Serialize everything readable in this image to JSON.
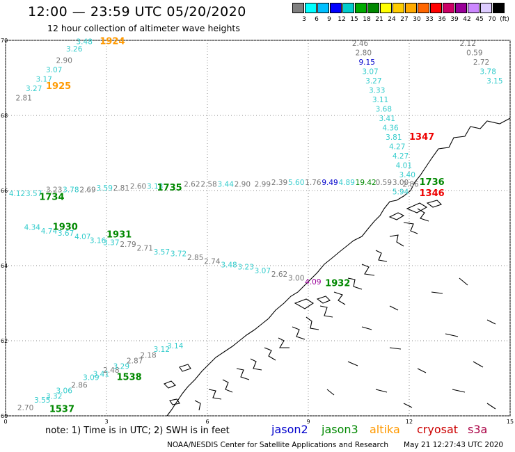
{
  "header": {
    "title": "12:00 — 23:59 UTC 05/20/2020",
    "subtitle": "12 hour collection of altimeter wave heights"
  },
  "legend": {
    "colors": [
      "#808080",
      "#00ffff",
      "#00bfff",
      "#0000ff",
      "#00cccc",
      "#00aa00",
      "#008800",
      "#ffff00",
      "#ffcc00",
      "#ffaa00",
      "#ff6600",
      "#ff0000",
      "#cc0066",
      "#990099",
      "#cc88ff",
      "#ddccff",
      "#000000"
    ],
    "labels": [
      "3",
      "6",
      "9",
      "12",
      "15",
      "18",
      "21",
      "24",
      "27",
      "30",
      "33",
      "36",
      "39",
      "42",
      "45",
      "70",
      "(ft)"
    ]
  },
  "axes": {
    "x_ticks": [
      "0",
      "3",
      "6",
      "9",
      "12",
      "15"
    ],
    "y_ticks": [
      "70",
      "68",
      "66",
      "64",
      "62",
      "60"
    ],
    "x_range": [
      0,
      15
    ],
    "y_range": [
      60,
      70
    ],
    "grid": "dotted"
  },
  "satellites": [
    {
      "name": "jason2",
      "color": "#0000cc"
    },
    {
      "name": "jason3",
      "color": "#008800"
    },
    {
      "name": "altika",
      "color": "#ff9900"
    },
    {
      "name": "cryosat",
      "color": "#cc0000"
    },
    {
      "name": "s3a",
      "color": "#aa0044"
    }
  ],
  "footer": {
    "note": "note: 1) Time is in UTC; 2) SWH is in feet",
    "credit": "NOAA/NESDIS Center for Satellite Applications and Research",
    "timestamp": "May 21 12:27:43 UTC 2020"
  },
  "chart_data": {
    "type": "scatter",
    "xlim": [
      0,
      15
    ],
    "ylim": [
      60,
      70
    ],
    "observations": [
      {
        "x": 2.1,
        "y": 69.9,
        "text": "3.48",
        "color": "#33cccc"
      },
      {
        "x": 1.8,
        "y": 69.7,
        "text": "3.26",
        "color": "#33cccc"
      },
      {
        "x": 1.5,
        "y": 69.4,
        "text": "2.90",
        "color": "#777777"
      },
      {
        "x": 1.2,
        "y": 69.15,
        "text": "3.07",
        "color": "#33cccc"
      },
      {
        "x": 0.9,
        "y": 68.9,
        "text": "3.17",
        "color": "#33cccc"
      },
      {
        "x": 0.6,
        "y": 68.65,
        "text": "3.27",
        "color": "#33cccc"
      },
      {
        "x": 0.3,
        "y": 68.4,
        "text": "2.81",
        "color": "#777777"
      },
      {
        "x": 2.8,
        "y": 69.9,
        "text": "1924",
        "color": "#ff9900",
        "time": true
      },
      {
        "x": 1.2,
        "y": 68.7,
        "text": "1925",
        "color": "#ff9900",
        "time": true
      },
      {
        "x": 10.3,
        "y": 69.85,
        "text": "2.46",
        "color": "#777777"
      },
      {
        "x": 10.4,
        "y": 69.6,
        "text": "2.80",
        "color": "#777777"
      },
      {
        "x": 10.5,
        "y": 69.35,
        "text": "9.15",
        "color": "#0000cc"
      },
      {
        "x": 10.6,
        "y": 69.1,
        "text": "3.07",
        "color": "#33cccc"
      },
      {
        "x": 10.7,
        "y": 68.85,
        "text": "3.27",
        "color": "#33cccc"
      },
      {
        "x": 10.8,
        "y": 68.6,
        "text": "3.33",
        "color": "#33cccc"
      },
      {
        "x": 10.9,
        "y": 68.35,
        "text": "3.11",
        "color": "#33cccc"
      },
      {
        "x": 11.0,
        "y": 68.1,
        "text": "3.68",
        "color": "#33cccc"
      },
      {
        "x": 11.1,
        "y": 67.85,
        "text": "3.41",
        "color": "#33cccc"
      },
      {
        "x": 11.2,
        "y": 67.6,
        "text": "4.36",
        "color": "#33cccc"
      },
      {
        "x": 11.3,
        "y": 67.35,
        "text": "3.81",
        "color": "#33cccc"
      },
      {
        "x": 11.4,
        "y": 67.1,
        "text": "4.27",
        "color": "#33cccc"
      },
      {
        "x": 11.5,
        "y": 66.85,
        "text": "4.27",
        "color": "#33cccc"
      },
      {
        "x": 11.6,
        "y": 66.6,
        "text": "4.01",
        "color": "#33cccc"
      },
      {
        "x": 11.7,
        "y": 66.35,
        "text": "3.40",
        "color": "#33cccc"
      },
      {
        "x": 11.8,
        "y": 66.1,
        "text": "2.86",
        "color": "#777777"
      },
      {
        "x": 12.0,
        "y": 67.35,
        "text": "1347",
        "color": "#ee0000",
        "time": true
      },
      {
        "x": 13.5,
        "y": 69.85,
        "text": "2.12",
        "color": "#777777"
      },
      {
        "x": 13.7,
        "y": 69.6,
        "text": "0.59",
        "color": "#777777"
      },
      {
        "x": 13.9,
        "y": 69.35,
        "text": "2.72",
        "color": "#777777"
      },
      {
        "x": 14.1,
        "y": 69.1,
        "text": "3.78",
        "color": "#33cccc"
      },
      {
        "x": 14.3,
        "y": 68.85,
        "text": "3.15",
        "color": "#33cccc"
      },
      {
        "x": 0.1,
        "y": 65.85,
        "text": "4.12",
        "color": "#33cccc"
      },
      {
        "x": 0.6,
        "y": 65.85,
        "text": "3.57",
        "color": "#33cccc"
      },
      {
        "x": 1.2,
        "y": 65.95,
        "text": "3.23",
        "color": "#777777"
      },
      {
        "x": 1.7,
        "y": 65.95,
        "text": "3.78",
        "color": "#33cccc"
      },
      {
        "x": 2.2,
        "y": 65.95,
        "text": "2.69",
        "color": "#777777"
      },
      {
        "x": 2.7,
        "y": 66.0,
        "text": "3.59",
        "color": "#33cccc"
      },
      {
        "x": 3.2,
        "y": 66.0,
        "text": "2.81",
        "color": "#777777"
      },
      {
        "x": 3.7,
        "y": 66.05,
        "text": "2.60",
        "color": "#777777"
      },
      {
        "x": 4.2,
        "y": 66.05,
        "text": "3.13",
        "color": "#33cccc"
      },
      {
        "x": 5.3,
        "y": 66.1,
        "text": "2.62",
        "color": "#777777"
      },
      {
        "x": 5.8,
        "y": 66.1,
        "text": "2.58",
        "color": "#777777"
      },
      {
        "x": 6.3,
        "y": 66.1,
        "text": "3.44",
        "color": "#33cccc"
      },
      {
        "x": 6.8,
        "y": 66.1,
        "text": "2.90",
        "color": "#777777"
      },
      {
        "x": 7.4,
        "y": 66.1,
        "text": "2.99",
        "color": "#777777"
      },
      {
        "x": 7.9,
        "y": 66.15,
        "text": "2.39",
        "color": "#777777"
      },
      {
        "x": 8.4,
        "y": 66.15,
        "text": "5.60",
        "color": "#33cccc"
      },
      {
        "x": 8.9,
        "y": 66.15,
        "text": "1.76",
        "color": "#777777"
      },
      {
        "x": 9.4,
        "y": 66.15,
        "text": "9.49",
        "color": "#0000cc"
      },
      {
        "x": 9.9,
        "y": 66.15,
        "text": "4.89",
        "color": "#33cccc"
      },
      {
        "x": 10.4,
        "y": 66.15,
        "text": "19.42",
        "color": "#008800"
      },
      {
        "x": 11.0,
        "y": 66.15,
        "text": "0.59",
        "color": "#777777"
      },
      {
        "x": 11.5,
        "y": 66.15,
        "text": "3.00",
        "color": "#777777"
      },
      {
        "x": 11.5,
        "y": 65.9,
        "text": "5.94",
        "color": "#33cccc"
      },
      {
        "x": 1.0,
        "y": 65.75,
        "text": "1734",
        "color": "#008800",
        "time": true
      },
      {
        "x": 4.5,
        "y": 66.0,
        "text": "1735",
        "color": "#008800",
        "time": true
      },
      {
        "x": 12.3,
        "y": 66.15,
        "text": "1736",
        "color": "#008800",
        "time": true
      },
      {
        "x": 12.3,
        "y": 65.85,
        "text": "1346",
        "color": "#ee0000",
        "time": true
      },
      {
        "x": 0.55,
        "y": 64.95,
        "text": "4.34",
        "color": "#33cccc"
      },
      {
        "x": 1.05,
        "y": 64.85,
        "text": "4.74",
        "color": "#33cccc"
      },
      {
        "x": 1.55,
        "y": 64.8,
        "text": "3.67",
        "color": "#33cccc"
      },
      {
        "x": 2.05,
        "y": 64.7,
        "text": "4.07",
        "color": "#33cccc"
      },
      {
        "x": 2.5,
        "y": 64.6,
        "text": "3.16",
        "color": "#33cccc"
      },
      {
        "x": 2.9,
        "y": 64.55,
        "text": "3.37",
        "color": "#33cccc"
      },
      {
        "x": 3.4,
        "y": 64.5,
        "text": "2.79",
        "color": "#777777"
      },
      {
        "x": 3.9,
        "y": 64.4,
        "text": "2.71",
        "color": "#777777"
      },
      {
        "x": 4.4,
        "y": 64.3,
        "text": "3.57",
        "color": "#33cccc"
      },
      {
        "x": 4.9,
        "y": 64.25,
        "text": "3.72",
        "color": "#33cccc"
      },
      {
        "x": 5.4,
        "y": 64.15,
        "text": "2.85",
        "color": "#777777"
      },
      {
        "x": 5.9,
        "y": 64.05,
        "text": "2.74",
        "color": "#777777"
      },
      {
        "x": 6.4,
        "y": 63.95,
        "text": "3.48",
        "color": "#33cccc"
      },
      {
        "x": 6.9,
        "y": 63.9,
        "text": "3.23",
        "color": "#33cccc"
      },
      {
        "x": 7.4,
        "y": 63.8,
        "text": "3.07",
        "color": "#33cccc"
      },
      {
        "x": 7.9,
        "y": 63.7,
        "text": "2.62",
        "color": "#777777"
      },
      {
        "x": 8.4,
        "y": 63.6,
        "text": "3.00",
        "color": "#777777"
      },
      {
        "x": 8.9,
        "y": 63.5,
        "text": "4.09",
        "color": "#990099"
      },
      {
        "x": 1.4,
        "y": 64.95,
        "text": "1930",
        "color": "#008800",
        "time": true
      },
      {
        "x": 3.0,
        "y": 64.75,
        "text": "1931",
        "color": "#008800",
        "time": true
      },
      {
        "x": 9.5,
        "y": 63.45,
        "text": "1932",
        "color": "#008800",
        "time": true
      },
      {
        "x": 0.35,
        "y": 60.15,
        "text": "2.70",
        "color": "#777777"
      },
      {
        "x": 0.85,
        "y": 60.35,
        "text": "3.55",
        "color": "#33cccc"
      },
      {
        "x": 1.2,
        "y": 60.45,
        "text": "3.32",
        "color": "#33cccc"
      },
      {
        "x": 1.5,
        "y": 60.6,
        "text": "3.06",
        "color": "#33cccc"
      },
      {
        "x": 1.95,
        "y": 60.75,
        "text": "2.86",
        "color": "#777777"
      },
      {
        "x": 2.3,
        "y": 60.95,
        "text": "3.09",
        "color": "#33cccc"
      },
      {
        "x": 2.6,
        "y": 61.05,
        "text": "3.41",
        "color": "#33cccc"
      },
      {
        "x": 2.9,
        "y": 61.15,
        "text": "2.48",
        "color": "#777777"
      },
      {
        "x": 3.2,
        "y": 61.25,
        "text": "3.29",
        "color": "#33cccc"
      },
      {
        "x": 3.6,
        "y": 61.4,
        "text": "2.87",
        "color": "#777777"
      },
      {
        "x": 4.0,
        "y": 61.55,
        "text": "2.18",
        "color": "#777777"
      },
      {
        "x": 4.4,
        "y": 61.7,
        "text": "3.12",
        "color": "#33cccc"
      },
      {
        "x": 4.8,
        "y": 61.8,
        "text": "3.14",
        "color": "#33cccc"
      },
      {
        "x": 1.3,
        "y": 60.1,
        "text": "1537",
        "color": "#008800",
        "time": true
      },
      {
        "x": 3.3,
        "y": 60.95,
        "text": "1538",
        "color": "#008800",
        "time": true
      }
    ]
  }
}
